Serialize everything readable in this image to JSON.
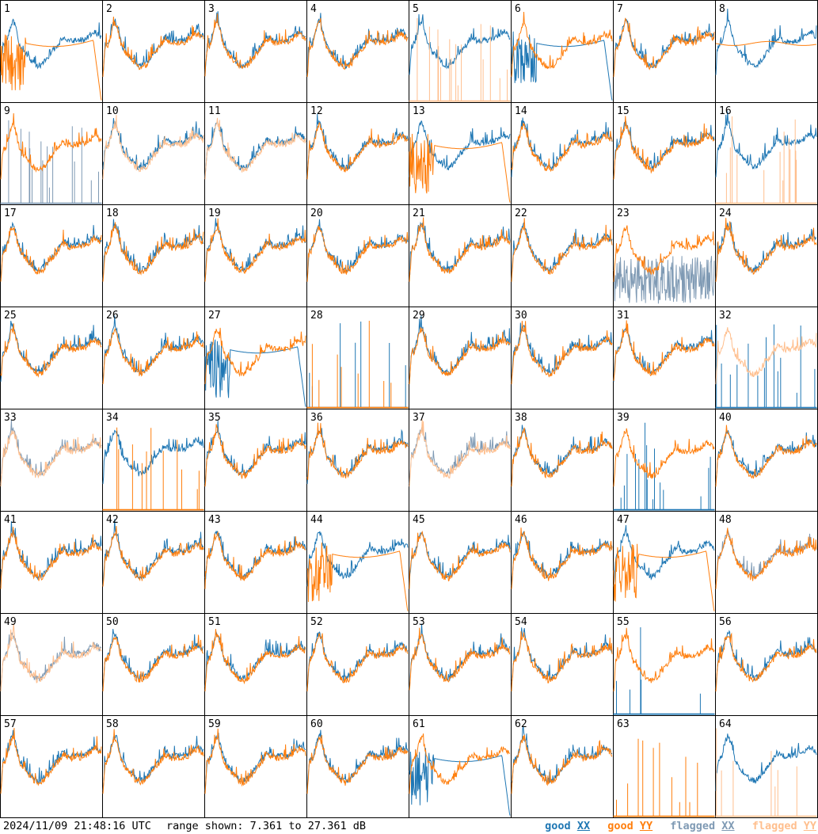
{
  "timestamp": "2024/11/09 21:48:16 UTC",
  "range_label": "range shown: 7.361 to 27.361 dB",
  "colors": {
    "good_xx": "#1f77b4",
    "good_yy": "#ff7f0e",
    "flagged_xx": "#7f9ab4",
    "flagged_yy": "#ffbf8e"
  },
  "legend": [
    {
      "pol": "good",
      "suffix": "XX",
      "color": "#1f77b4"
    },
    {
      "pol": "good",
      "suffix": "YY",
      "color": "#ff7f0e"
    },
    {
      "pol": "flagged",
      "suffix": "XX",
      "color": "#7f9ab4"
    },
    {
      "pol": "flagged",
      "suffix": "YY",
      "color": "#ffbf8e"
    }
  ],
  "chart_data": {
    "type": "line",
    "panel_count": 64,
    "grid": [
      8,
      8
    ],
    "ylim": [
      7.361,
      27.361
    ],
    "y_unit": "dB",
    "panels": [
      {
        "id": "1",
        "xx": "good",
        "yy": "good",
        "yy_shape": "bad"
      },
      {
        "id": "2",
        "xx": "good",
        "yy": "good"
      },
      {
        "id": "3",
        "xx": "good",
        "yy": "good"
      },
      {
        "id": "4",
        "xx": "good",
        "yy": "good"
      },
      {
        "id": "5",
        "xx": "good",
        "yy": "flagged",
        "yy_shape": "spikes"
      },
      {
        "id": "6",
        "xx": "good",
        "yy": "good",
        "xx_shape": "bad"
      },
      {
        "id": "7",
        "xx": "good",
        "yy": "good"
      },
      {
        "id": "8",
        "xx": "good",
        "yy": "good",
        "yy_shape": "flat"
      },
      {
        "id": "9",
        "xx": "flagged",
        "yy": "good",
        "xx_shape": "spikes"
      },
      {
        "id": "10",
        "xx": "good",
        "yy": "flagged"
      },
      {
        "id": "11",
        "xx": "good",
        "yy": "flagged"
      },
      {
        "id": "12",
        "xx": "good",
        "yy": "good"
      },
      {
        "id": "13",
        "xx": "good",
        "yy": "good",
        "yy_shape": "bad"
      },
      {
        "id": "14",
        "xx": "good",
        "yy": "good"
      },
      {
        "id": "15",
        "xx": "good",
        "yy": "good"
      },
      {
        "id": "16",
        "xx": "good",
        "yy": "flagged",
        "yy_shape": "spikes"
      },
      {
        "id": "17",
        "xx": "good",
        "yy": "good"
      },
      {
        "id": "18",
        "xx": "good",
        "yy": "good"
      },
      {
        "id": "19",
        "xx": "good",
        "yy": "good"
      },
      {
        "id": "20",
        "xx": "good",
        "yy": "good"
      },
      {
        "id": "21",
        "xx": "good",
        "yy": "good"
      },
      {
        "id": "22",
        "xx": "good",
        "yy": "good"
      },
      {
        "id": "23",
        "xx": "flagged",
        "yy": "good",
        "xx_shape": "noise"
      },
      {
        "id": "24",
        "xx": "good",
        "yy": "good"
      },
      {
        "id": "25",
        "xx": "good",
        "yy": "good"
      },
      {
        "id": "26",
        "xx": "good",
        "yy": "good"
      },
      {
        "id": "27",
        "xx": "good",
        "yy": "good",
        "xx_shape": "bad"
      },
      {
        "id": "28",
        "xx": "good",
        "yy": "good",
        "xx_shape": "spikes",
        "yy_shape": "spikes"
      },
      {
        "id": "29",
        "xx": "good",
        "yy": "good"
      },
      {
        "id": "30",
        "xx": "good",
        "yy": "good"
      },
      {
        "id": "31",
        "xx": "good",
        "yy": "good"
      },
      {
        "id": "32",
        "xx": "good",
        "yy": "flagged",
        "xx_shape": "spikes"
      },
      {
        "id": "33",
        "xx": "flagged",
        "yy": "flagged"
      },
      {
        "id": "34",
        "xx": "good",
        "yy": "good",
        "yy_shape": "spikes"
      },
      {
        "id": "35",
        "xx": "good",
        "yy": "good"
      },
      {
        "id": "36",
        "xx": "good",
        "yy": "good"
      },
      {
        "id": "37",
        "xx": "flagged",
        "yy": "flagged"
      },
      {
        "id": "38",
        "xx": "good",
        "yy": "good"
      },
      {
        "id": "39",
        "xx": "good",
        "yy": "good",
        "xx_shape": "spikes"
      },
      {
        "id": "40",
        "xx": "good",
        "yy": "good"
      },
      {
        "id": "41",
        "xx": "good",
        "yy": "good"
      },
      {
        "id": "42",
        "xx": "good",
        "yy": "good"
      },
      {
        "id": "43",
        "xx": "good",
        "yy": "good"
      },
      {
        "id": "44",
        "xx": "good",
        "yy": "good",
        "yy_shape": "bad"
      },
      {
        "id": "45",
        "xx": "good",
        "yy": "good"
      },
      {
        "id": "46",
        "xx": "good",
        "yy": "good"
      },
      {
        "id": "47",
        "xx": "good",
        "yy": "good",
        "yy_shape": "bad"
      },
      {
        "id": "48",
        "xx": "flagged",
        "yy": "good"
      },
      {
        "id": "49",
        "xx": "flagged",
        "yy": "flagged"
      },
      {
        "id": "50",
        "xx": "good",
        "yy": "good"
      },
      {
        "id": "51",
        "xx": "good",
        "yy": "good"
      },
      {
        "id": "52",
        "xx": "good",
        "yy": "good"
      },
      {
        "id": "53",
        "xx": "good",
        "yy": "good"
      },
      {
        "id": "54",
        "xx": "good",
        "yy": "good"
      },
      {
        "id": "55",
        "xx": "good",
        "yy": "good",
        "xx_shape": "spikes"
      },
      {
        "id": "56",
        "xx": "good",
        "yy": "good"
      },
      {
        "id": "57",
        "xx": "good",
        "yy": "good"
      },
      {
        "id": "58",
        "xx": "good",
        "yy": "good"
      },
      {
        "id": "59",
        "xx": "good",
        "yy": "good"
      },
      {
        "id": "60",
        "xx": "good",
        "yy": "good"
      },
      {
        "id": "61",
        "xx": "good",
        "yy": "good",
        "xx_shape": "bad"
      },
      {
        "id": "62",
        "xx": "good",
        "yy": "good"
      },
      {
        "id": "63",
        "xx": "flagged",
        "yy": "good",
        "yy_shape": "spikes",
        "xx_shape": "none"
      },
      {
        "id": "64",
        "xx": "good",
        "yy": "flagged",
        "yy_shape": "spikes"
      }
    ]
  }
}
